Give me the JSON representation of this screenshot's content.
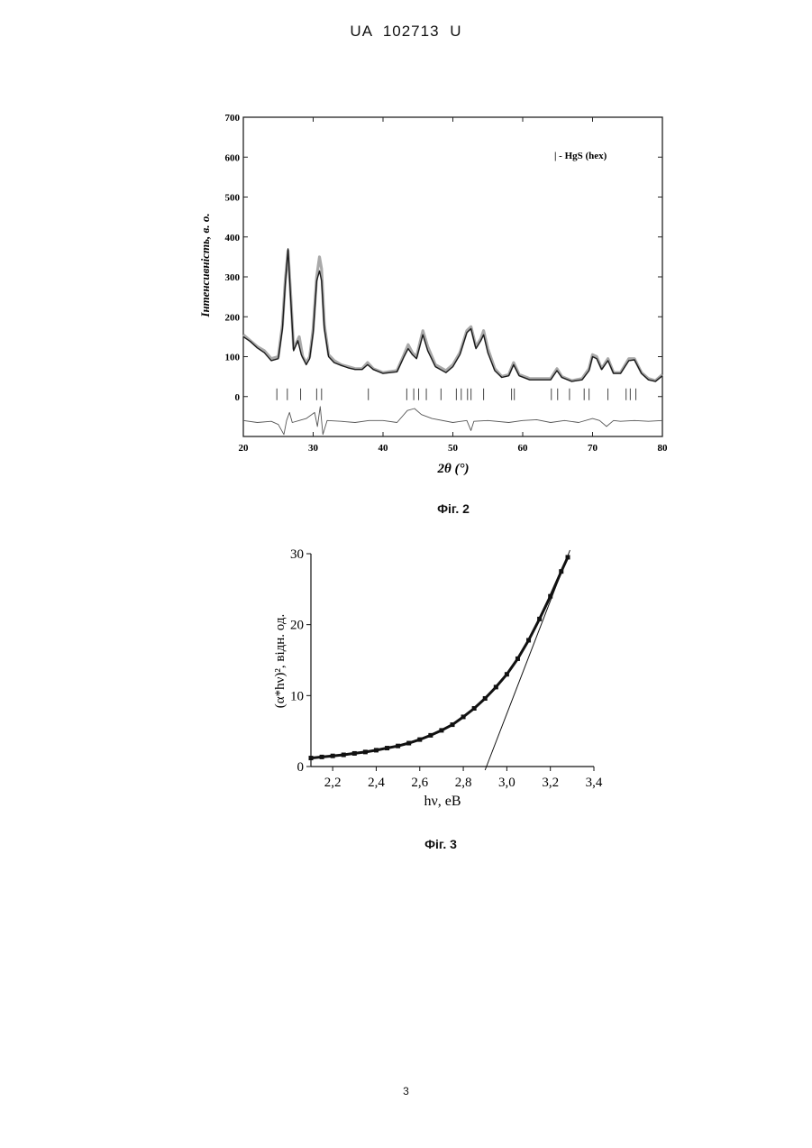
{
  "header": "UA   102713   U",
  "page_number": "3",
  "chart_data": [
    {
      "type": "line",
      "figure_caption": "Фіг. 2",
      "xlabel": "2θ (°)",
      "ylabel": "Інтенсивність, в. о.",
      "xlim": [
        20,
        80
      ],
      "ylim": [
        -100,
        700
      ],
      "xticks": [
        "20",
        "30",
        "40",
        "50",
        "60",
        "70",
        "80"
      ],
      "yticks": [
        "0",
        "100",
        "200",
        "300",
        "400",
        "500",
        "600",
        "700"
      ],
      "legend": {
        "label": "| - HgS (hex)",
        "position": "top-right"
      },
      "series": [
        {
          "role": "observed",
          "color": "#a9a9a9",
          "x": [
            20,
            21,
            22,
            23,
            24,
            25,
            25.6,
            26.0,
            26.4,
            26.8,
            27.2,
            28.0,
            28.5,
            29,
            29.5,
            30.0,
            30.5,
            30.9,
            31.2,
            31.6,
            32.2,
            33,
            34,
            35,
            36,
            37,
            37.8,
            38.6,
            40,
            42,
            43,
            43.6,
            44.2,
            44.8,
            45.7,
            46.4,
            47.5,
            49,
            50,
            51,
            52.0,
            52.6,
            53.3,
            54.0,
            54.4,
            55,
            56,
            57,
            58,
            58.7,
            59.5,
            61,
            63,
            64,
            64.9,
            65.6,
            67,
            68.5,
            69.5,
            70.0,
            70.6,
            71.3,
            72.2,
            73,
            74,
            75.2,
            76,
            77,
            78,
            79,
            80
          ],
          "y": [
            155,
            140,
            125,
            115,
            95,
            100,
            180,
            290,
            365,
            250,
            120,
            150,
            100,
            85,
            100,
            170,
            300,
            350,
            320,
            180,
            105,
            90,
            80,
            75,
            70,
            70,
            85,
            70,
            60,
            65,
            105,
            130,
            110,
            100,
            165,
            125,
            80,
            65,
            80,
            110,
            165,
            175,
            125,
            145,
            165,
            120,
            70,
            50,
            55,
            85,
            55,
            45,
            45,
            45,
            70,
            50,
            40,
            45,
            70,
            105,
            100,
            70,
            95,
            60,
            60,
            95,
            95,
            60,
            45,
            40,
            55
          ]
        },
        {
          "role": "calculated",
          "color": "#1a1a1a",
          "x": [
            20,
            21,
            22,
            23,
            24,
            25,
            25.6,
            26.0,
            26.4,
            26.8,
            27.2,
            27.8,
            28.3,
            29,
            29.5,
            30.0,
            30.5,
            30.9,
            31.2,
            31.6,
            32.2,
            33,
            34,
            35,
            36,
            37,
            37.8,
            38.6,
            40,
            42,
            43,
            43.6,
            44.2,
            44.8,
            45.7,
            46.4,
            47.5,
            49,
            50,
            51,
            52.0,
            52.6,
            53.3,
            54.0,
            54.4,
            55,
            56,
            57,
            58,
            58.7,
            59.5,
            61,
            63,
            64,
            64.9,
            65.6,
            67,
            68.5,
            69.5,
            70.0,
            70.6,
            71.3,
            72.2,
            73,
            74,
            75.2,
            76,
            77,
            78,
            79,
            80
          ],
          "y": [
            150,
            138,
            122,
            110,
            90,
            95,
            170,
            280,
            370,
            240,
            115,
            140,
            105,
            80,
            95,
            160,
            290,
            315,
            290,
            170,
            100,
            85,
            78,
            72,
            68,
            68,
            80,
            68,
            58,
            62,
            100,
            120,
            105,
            95,
            155,
            115,
            75,
            60,
            75,
            105,
            160,
            170,
            120,
            140,
            155,
            110,
            65,
            48,
            52,
            80,
            52,
            42,
            42,
            42,
            65,
            48,
            38,
            42,
            65,
            100,
            95,
            68,
            90,
            58,
            58,
            90,
            92,
            58,
            42,
            38,
            52
          ]
        },
        {
          "role": "difference",
          "color": "#555555",
          "x": [
            20,
            22,
            24,
            25,
            25.8,
            26.2,
            26.6,
            27,
            28,
            29,
            30.2,
            30.6,
            31.0,
            31.4,
            32,
            34,
            36,
            38,
            40,
            42,
            43.5,
            44.5,
            45.5,
            47,
            50,
            52,
            52.6,
            53,
            55,
            58,
            60,
            62,
            64,
            66,
            68,
            70,
            71,
            72,
            73,
            74,
            76,
            78,
            80
          ],
          "y": [
            -60,
            -65,
            -62,
            -70,
            -95,
            -60,
            -40,
            -65,
            -60,
            -55,
            -40,
            -75,
            -25,
            -95,
            -60,
            -62,
            -65,
            -60,
            -60,
            -65,
            -35,
            -30,
            -45,
            -55,
            -65,
            -60,
            -85,
            -62,
            -60,
            -65,
            -60,
            -58,
            -65,
            -60,
            -65,
            -55,
            -60,
            -75,
            -60,
            -62,
            -60,
            -62,
            -60
          ]
        }
      ],
      "reflection_ticks_2theta": [
        24.8,
        26.3,
        28.2,
        30.5,
        31.2,
        37.9,
        43.4,
        44.4,
        45.1,
        46.2,
        48.3,
        50.5,
        51.2,
        52.1,
        52.6,
        54.4,
        58.4,
        58.8,
        64.1,
        65.0,
        66.7,
        68.8,
        69.5,
        72.2,
        74.8,
        75.4,
        76.2
      ]
    },
    {
      "type": "scatter",
      "figure_caption": "Фіг. 3",
      "xlabel": "hν, еВ",
      "ylabel": "(α*hν)², відн. од.",
      "xlim": [
        2.1,
        3.4
      ],
      "ylim": [
        0,
        30
      ],
      "xticks": [
        "2,2",
        "2,4",
        "2,6",
        "2,8",
        "3,0",
        "3,2",
        "3,4"
      ],
      "yticks": [
        "0",
        "10",
        "20",
        "30"
      ],
      "series": [
        {
          "role": "measured",
          "color": "#111111",
          "x": [
            2.1,
            2.15,
            2.2,
            2.25,
            2.3,
            2.35,
            2.4,
            2.45,
            2.5,
            2.55,
            2.6,
            2.65,
            2.7,
            2.75,
            2.8,
            2.85,
            2.9,
            2.95,
            3.0,
            3.05,
            3.1,
            3.15,
            3.2,
            3.25,
            3.28
          ],
          "y": [
            1.2,
            1.35,
            1.5,
            1.65,
            1.85,
            2.05,
            2.3,
            2.6,
            2.9,
            3.3,
            3.8,
            4.4,
            5.1,
            5.9,
            7.0,
            8.2,
            9.6,
            11.2,
            13.0,
            15.2,
            17.8,
            20.8,
            24.0,
            27.5,
            29.5
          ]
        },
        {
          "role": "linear-fit",
          "color": "#111111",
          "x": [
            2.9,
            3.29
          ],
          "y": [
            0,
            30
          ]
        }
      ]
    }
  ]
}
